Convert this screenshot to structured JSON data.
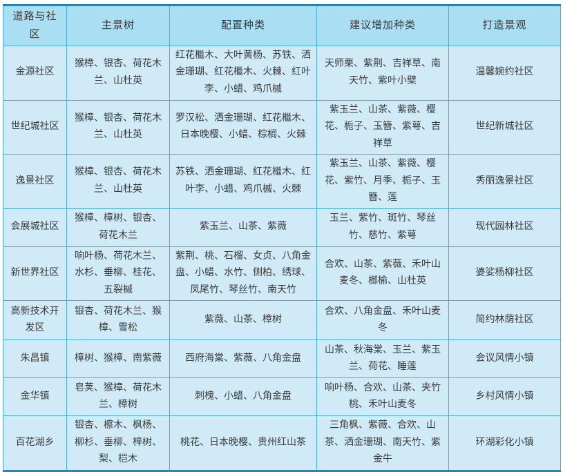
{
  "table": {
    "columns": [
      "道路与社区",
      "主景树",
      "配置种类",
      "建议增加种类",
      "打造景观"
    ],
    "rows": [
      [
        "金源社区",
        "猴樟、银杏、荷花木兰、山杜英",
        "红花檵木、大叶黄杨、苏铁、洒金珊瑚、红花檵木、火棘、红叶李、小蜡、鸡爪槭",
        "天师栗、紫荆、吉祥草、南天竹、紫叶小檗",
        "温馨婉约社区"
      ],
      [
        "世纪城社区",
        "猴樟、银杏、荷花木兰、山杜英",
        "罗汉松、洒金珊瑚、红花檵木、日本晚樱、小蜡、棕榈、火棘",
        "紫玉兰、山茶、紫薇、樱花、栀子、玉簪、紫萼、吉祥草",
        "世纪新城社区"
      ],
      [
        "逸景社区",
        "猴樟、银杏、荷花木兰、山杜英",
        "苏铁、洒金珊瑚、红花檵木、红叶李、小蜡、鸡爪槭、火棘",
        "紫玉兰、山茶、紫薇、樱花、紫竹、月季、栀子、玉簪、莲",
        "秀丽逸景社区"
      ],
      [
        "会展城社区",
        "猴樟、樟树、银杏、荷花木兰",
        "紫玉兰、山茶、紫薇",
        "玉兰、紫竹、斑竹、琴丝竹、慈竹、紫萼",
        "现代园林社区"
      ],
      [
        "新世界社区",
        "响叶杨、荷花木兰、水杉、垂柳、桂花、五裂槭",
        "紫荆、桃、石榴、女贞、八角金盘、小蜡、水竹、侧柏、绣球、凤尾竹、琴丝竹、南天竹",
        "合欢、山茶、紫薇、禾叶山麦冬、榔榆、山杜英",
        "婆娑杨柳社区"
      ],
      [
        "高新技术开发区",
        "银杏、荷花木兰、猴樟、雪松",
        "紫薇、山茶、樟树",
        "合欢、八角金盘、禾叶山麦冬",
        "简约林荫社区"
      ],
      [
        "朱昌镇",
        "樟树、猴樟、南紫薇",
        "西府海棠、紫薇、八角金盘",
        "山茶、秋海棠、玉兰、紫玉兰、荷花、睡莲",
        "会议风情小镇"
      ],
      [
        "金华镇",
        "皂荚、猴樟、荷花木兰、樟树",
        "刺槐、小蜡、八角金盘",
        "响叶杨、合欢、山茶、夹竹桃、禾叶山麦冬",
        "乡村风情小镇"
      ],
      [
        "百花湖乡",
        "银杏、檫木、枫杨、柳杉、垂柳、梓树、梨、桤木",
        "桃花、日本晚樱、贵州红山茶",
        "三角枫、紫薇、合欢、山茶、洒金珊瑚、南天竹、紫金牛",
        "环湖彩化小镇"
      ]
    ]
  },
  "colors": {
    "header_bg": "#aadef2",
    "cell_bg": "#d0eaf8",
    "border": "#45aede",
    "outer_border": "#2386b5",
    "text": "#3a3a3a",
    "page_bg": "#ffffff"
  }
}
